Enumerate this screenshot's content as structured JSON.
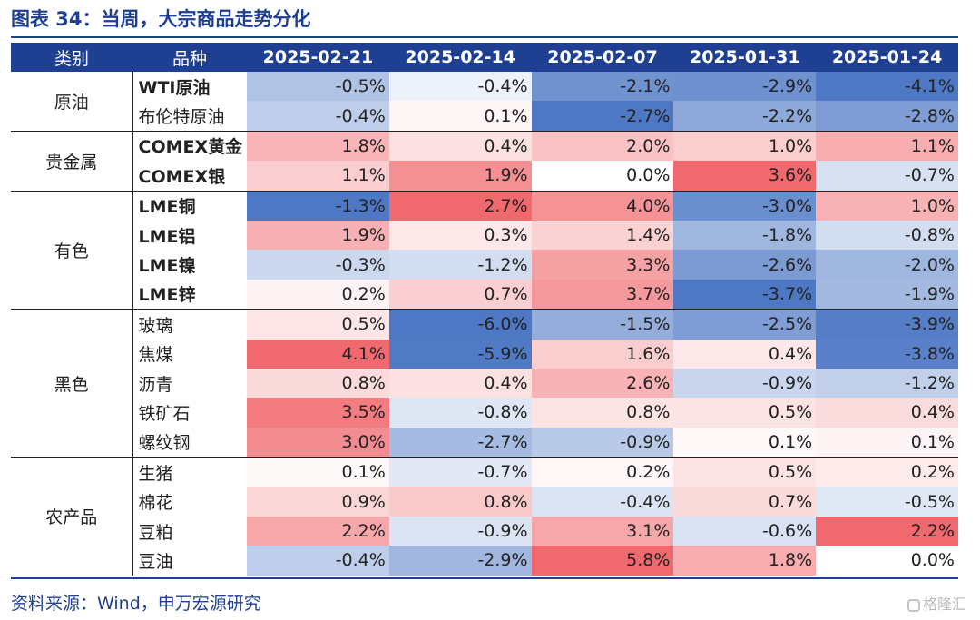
{
  "title": "图表 34：当周，大宗商品走势分化",
  "header": {
    "category": "类别",
    "variety": "品种",
    "dates": [
      "2025-02-21",
      "2025-02-14",
      "2025-02-07",
      "2025-01-31",
      "2025-01-24"
    ]
  },
  "groups": [
    {
      "category": "原油",
      "rows": [
        {
          "name": "WTI原油",
          "values": [
            "-0.5%",
            "-0.4%",
            "-2.1%",
            "-2.9%",
            "-4.1%"
          ]
        },
        {
          "name": "布伦特原油",
          "values": [
            "-0.4%",
            "0.1%",
            "-2.7%",
            "-2.2%",
            "-2.8%"
          ]
        }
      ]
    },
    {
      "category": "贵金属",
      "rows": [
        {
          "name": "COMEX黄金",
          "values": [
            "1.8%",
            "0.4%",
            "2.0%",
            "1.0%",
            "1.1%"
          ]
        },
        {
          "name": "COMEX银",
          "values": [
            "1.1%",
            "1.9%",
            "0.0%",
            "3.6%",
            "-0.7%"
          ]
        }
      ]
    },
    {
      "category": "有色",
      "rows": [
        {
          "name": "LME铜",
          "values": [
            "-1.3%",
            "2.7%",
            "4.0%",
            "-3.0%",
            "1.0%"
          ]
        },
        {
          "name": "LME铝",
          "values": [
            "1.9%",
            "0.3%",
            "1.4%",
            "-1.8%",
            "-0.8%"
          ]
        },
        {
          "name": "LME镍",
          "values": [
            "-0.3%",
            "-1.2%",
            "3.3%",
            "-2.6%",
            "-2.0%"
          ]
        },
        {
          "name": "LME锌",
          "values": [
            "0.2%",
            "0.7%",
            "3.7%",
            "-3.7%",
            "-1.9%"
          ]
        }
      ]
    },
    {
      "category": "黑色",
      "rows": [
        {
          "name": "玻璃",
          "values": [
            "0.5%",
            "-6.0%",
            "-1.5%",
            "-2.5%",
            "-3.9%"
          ]
        },
        {
          "name": "焦煤",
          "values": [
            "4.1%",
            "-5.9%",
            "1.6%",
            "0.4%",
            "-3.8%"
          ]
        },
        {
          "name": "沥青",
          "values": [
            "0.8%",
            "0.4%",
            "2.6%",
            "-0.9%",
            "-1.2%"
          ]
        },
        {
          "name": "铁矿石",
          "values": [
            "3.5%",
            "-0.8%",
            "0.8%",
            "0.5%",
            "0.4%"
          ]
        },
        {
          "name": "螺纹钢",
          "values": [
            "3.0%",
            "-2.7%",
            "-0.9%",
            "0.1%",
            "0.1%"
          ]
        }
      ]
    },
    {
      "category": "农产品",
      "rows": [
        {
          "name": "生猪",
          "values": [
            "0.1%",
            "-0.7%",
            "0.2%",
            "0.5%",
            "0.2%"
          ]
        },
        {
          "name": "棉花",
          "values": [
            "0.9%",
            "0.8%",
            "-0.4%",
            "0.7%",
            "-0.5%"
          ]
        },
        {
          "name": "豆粕",
          "values": [
            "2.2%",
            "-0.9%",
            "3.1%",
            "-0.6%",
            "2.2%"
          ]
        },
        {
          "name": "豆油",
          "values": [
            "-0.4%",
            "-2.9%",
            "5.8%",
            "1.8%",
            "0.0%"
          ]
        }
      ]
    }
  ],
  "source": "资料来源：Wind，申万宏源研究",
  "watermark": "格隆汇",
  "colors": {
    "header_bg": "#1f3f93",
    "positive_strong": "#f0696e",
    "negative_strong": "#4e78c4",
    "neutral": "#ffffff"
  }
}
